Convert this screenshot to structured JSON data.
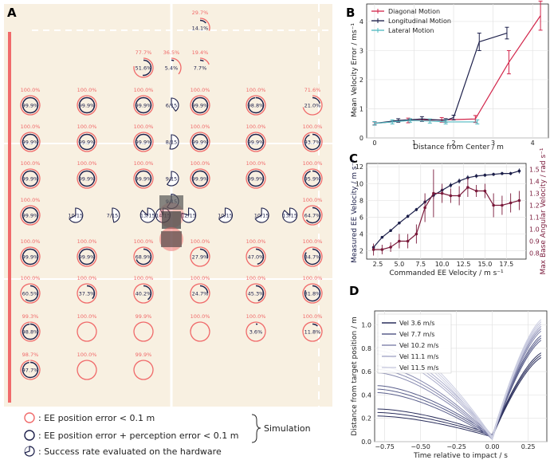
{
  "figure": {
    "panel_labels": [
      "A",
      "B",
      "C",
      "D"
    ],
    "colors": {
      "bg": "#f8f0e1",
      "pink": "#f06a6a",
      "navy": "#1c1f4a",
      "darkred": "#7a1a3b",
      "teal": "#4fb8c0",
      "crimson": "#d2264b"
    }
  },
  "panelA": {
    "legend": {
      "pink_circle": ": EE position error < 0.1 m",
      "navy_circle": ": EE position error + perception error < 0.1 m",
      "hardware_glyph": ": Success rate evaluated on the hardware",
      "group_label": "Simulation"
    },
    "grid": [
      {
        "col": 4,
        "row": 0,
        "outer": "29.7%",
        "inner": "14.1%",
        "outerfrac": 0.297,
        "innerfrac": 0.141
      },
      {
        "col": 2,
        "row": 1,
        "outer": "77.7%",
        "inner": "51.6%",
        "outerfrac": 0.777,
        "innerfrac": 0.516
      },
      {
        "col": 3,
        "row": 1,
        "outer": "36.5%",
        "inner": "5.4%",
        "outerfrac": 0.365,
        "innerfrac": 0.054
      },
      {
        "col": 4,
        "row": 1,
        "outer": "19.4%",
        "inner": "7.7%",
        "outerfrac": 0.194,
        "innerfrac": 0.077
      },
      {
        "col": 0,
        "row": 2,
        "outer": "100.0%",
        "inner": "99.9%",
        "outerfrac": 1.0,
        "innerfrac": 0.999
      },
      {
        "col": 1,
        "row": 2,
        "outer": "100.0%",
        "inner": "99.9%",
        "outerfrac": 1.0,
        "innerfrac": 0.999
      },
      {
        "col": 2,
        "row": 2,
        "outer": "100.0%",
        "inner": "99.9%",
        "outerfrac": 1.0,
        "innerfrac": 0.999
      },
      {
        "col": 4,
        "row": 2,
        "outer": "100.0%",
        "inner": "99.9%",
        "outerfrac": 1.0,
        "innerfrac": 0.999
      },
      {
        "col": 5,
        "row": 2,
        "outer": "100.0%",
        "inner": "98.8%",
        "outerfrac": 1.0,
        "innerfrac": 0.988
      },
      {
        "col": 6,
        "row": 2,
        "outer": "71.6%",
        "inner": "21.0%",
        "outerfrac": 0.716,
        "innerfrac": 0.21
      },
      {
        "col": 0,
        "row": 3,
        "outer": "100.0%",
        "inner": "99.9%",
        "outerfrac": 1.0,
        "innerfrac": 0.999
      },
      {
        "col": 1,
        "row": 3,
        "outer": "100.0%",
        "inner": "99.9%",
        "outerfrac": 1.0,
        "innerfrac": 0.999
      },
      {
        "col": 2,
        "row": 3,
        "outer": "100.0%",
        "inner": "99.9%",
        "outerfrac": 1.0,
        "innerfrac": 0.999
      },
      {
        "col": 4,
        "row": 3,
        "outer": "100.0%",
        "inner": "99.9%",
        "outerfrac": 1.0,
        "innerfrac": 0.999
      },
      {
        "col": 5,
        "row": 3,
        "outer": "100.0%",
        "inner": "99.9%",
        "outerfrac": 1.0,
        "innerfrac": 0.999
      },
      {
        "col": 6,
        "row": 3,
        "outer": "100.0%",
        "inner": "93.7%",
        "outerfrac": 1.0,
        "innerfrac": 0.937
      },
      {
        "col": 0,
        "row": 4,
        "outer": "100.0%",
        "inner": "99.9%",
        "outerfrac": 1.0,
        "innerfrac": 0.999
      },
      {
        "col": 1,
        "row": 4,
        "outer": "100.0%",
        "inner": "99.9%",
        "outerfrac": 1.0,
        "innerfrac": 0.999
      },
      {
        "col": 2,
        "row": 4,
        "outer": "100.0%",
        "inner": "99.9%",
        "outerfrac": 1.0,
        "innerfrac": 0.999
      },
      {
        "col": 4,
        "row": 4,
        "outer": "100.0%",
        "inner": "99.9%",
        "outerfrac": 1.0,
        "innerfrac": 0.999
      },
      {
        "col": 5,
        "row": 4,
        "outer": "100.0%",
        "inner": "99.9%",
        "outerfrac": 1.0,
        "innerfrac": 0.999
      },
      {
        "col": 6,
        "row": 4,
        "outer": "100.0%",
        "inner": "95.9%",
        "outerfrac": 1.0,
        "innerfrac": 0.959
      },
      {
        "col": 0,
        "row": 5,
        "outer": "100.0%",
        "inner": "99.9%",
        "outerfrac": 1.0,
        "innerfrac": 0.999
      },
      {
        "col": 6,
        "row": 5,
        "outer": "100.0%",
        "inner": "64.7%",
        "outerfrac": 1.0,
        "innerfrac": 0.647
      },
      {
        "col": 0,
        "row": 6,
        "outer": "100.0%",
        "inner": "99.9%",
        "outerfrac": 1.0,
        "innerfrac": 0.999
      },
      {
        "col": 1,
        "row": 6,
        "outer": "100.0%",
        "inner": "99.9%",
        "outerfrac": 1.0,
        "innerfrac": 0.999
      },
      {
        "col": 2,
        "row": 6,
        "outer": "100.0%",
        "inner": "68.9%",
        "outerfrac": 1.0,
        "innerfrac": 0.689
      },
      {
        "col": 4,
        "row": 6,
        "outer": "100.0%",
        "inner": "27.9%",
        "outerfrac": 1.0,
        "innerfrac": 0.279
      },
      {
        "col": 5,
        "row": 6,
        "outer": "100.0%",
        "inner": "47.0%",
        "outerfrac": 1.0,
        "innerfrac": 0.47
      },
      {
        "col": 6,
        "row": 6,
        "outer": "100.0%",
        "inner": "84.7%",
        "outerfrac": 1.0,
        "innerfrac": 0.847
      },
      {
        "col": 0,
        "row": 7,
        "outer": "100.0%",
        "inner": "60.5%",
        "outerfrac": 1.0,
        "innerfrac": 0.605
      },
      {
        "col": 1,
        "row": 7,
        "outer": "100.0%",
        "inner": "37.3%",
        "outerfrac": 1.0,
        "innerfrac": 0.373
      },
      {
        "col": 2,
        "row": 7,
        "outer": "100.0%",
        "inner": "40.2%",
        "outerfrac": 1.0,
        "innerfrac": 0.402
      },
      {
        "col": 4,
        "row": 7,
        "outer": "100.0%",
        "inner": "24.7%",
        "outerfrac": 1.0,
        "innerfrac": 0.247
      },
      {
        "col": 5,
        "row": 7,
        "outer": "100.0%",
        "inner": "45.3%",
        "outerfrac": 1.0,
        "innerfrac": 0.453
      },
      {
        "col": 6,
        "row": 7,
        "outer": "100.0%",
        "inner": "81.8%",
        "outerfrac": 1.0,
        "innerfrac": 0.818
      },
      {
        "col": 0,
        "row": 8,
        "outer": "99.3%",
        "inner": "98.8%",
        "outerfrac": 0.993,
        "innerfrac": 0.988
      },
      {
        "col": 1,
        "row": 8,
        "outer": "100.0%",
        "inner": "",
        "outerfrac": 1.0,
        "innerfrac": 0
      },
      {
        "col": 2,
        "row": 8,
        "outer": "99.9%",
        "inner": "",
        "outerfrac": 0.999,
        "innerfrac": 0
      },
      {
        "col": 4,
        "row": 8,
        "outer": "100.0%",
        "inner": "",
        "outerfrac": 1.0,
        "innerfrac": 0
      },
      {
        "col": 5,
        "row": 8,
        "outer": "100.0%",
        "inner": "3.6%",
        "outerfrac": 1.0,
        "innerfrac": 0.036
      },
      {
        "col": 6,
        "row": 8,
        "outer": "100.0%",
        "inner": "11.8%",
        "outerfrac": 1.0,
        "innerfrac": 0.118
      },
      {
        "col": 0,
        "row": 9,
        "outer": "98.7%",
        "inner": "97.7%",
        "outerfrac": 0.987,
        "innerfrac": 0.977
      },
      {
        "col": 1,
        "row": 9,
        "outer": "100.0%",
        "inner": "",
        "outerfrac": 1.0,
        "innerfrac": 0
      },
      {
        "col": 2,
        "row": 9,
        "outer": "99.9%",
        "inner": "",
        "outerfrac": 0.999,
        "innerfrac": 0
      }
    ],
    "hardware": [
      {
        "col": 3,
        "row": 2,
        "label": "6/15",
        "frac": 0.4
      },
      {
        "col": 3,
        "row": 3,
        "label": "8/15",
        "frac": 0.533
      },
      {
        "col": 3,
        "row": 4,
        "label": "9/15",
        "frac": 0.6
      },
      {
        "col": 3,
        "row": 4.62,
        "label": "9/15",
        "frac": 0.6
      },
      {
        "col": 0.8,
        "row": 5,
        "label": "10/15",
        "frac": 0.667
      },
      {
        "col": 1.45,
        "row": 5,
        "label": "7/15",
        "frac": 0.467
      },
      {
        "col": 2.15,
        "row": 5,
        "label": "13/15",
        "frac": 0.867
      },
      {
        "col": 2.7,
        "row": 5,
        "label": "14/15",
        "frac": 0.933
      },
      {
        "col": 3.6,
        "row": 5,
        "label": "12/15",
        "frac": 0.8
      },
      {
        "col": 4.45,
        "row": 5,
        "label": "10/15",
        "frac": 0.667
      },
      {
        "col": 5.1,
        "row": 5,
        "label": "10/15",
        "frac": 0.667
      },
      {
        "col": 5.6,
        "row": 5,
        "label": "13/15",
        "frac": 0.867
      }
    ]
  },
  "chart_data": [
    {
      "panel": "B",
      "type": "line",
      "xlabel": "Distance from Center / m",
      "ylabel": "Mean Velocity Error / ms⁻¹",
      "xlim": [
        -0.2,
        4.4
      ],
      "ylim": [
        0,
        4.6
      ],
      "xticks": [
        0,
        1,
        2,
        3,
        4
      ],
      "yticks": [
        0,
        1,
        2,
        3,
        4
      ],
      "grid": true,
      "legend": "top-left",
      "series": [
        {
          "name": "Diagonal Motion",
          "color": "#d2264b",
          "x": [
            0,
            0.85,
            1.7,
            2.55,
            3.4,
            4.2
          ],
          "y": [
            0.5,
            0.6,
            0.62,
            0.65,
            2.6,
            4.2
          ],
          "err": [
            0.05,
            0.08,
            0.08,
            0.12,
            0.4,
            0.5
          ]
        },
        {
          "name": "Longitudinal Motion",
          "color": "#1c1f4a",
          "x": [
            0,
            0.6,
            1.2,
            1.8,
            2.0,
            2.65,
            3.35
          ],
          "y": [
            0.5,
            0.6,
            0.65,
            0.6,
            0.7,
            3.3,
            3.6
          ],
          "err": [
            0.06,
            0.06,
            0.08,
            0.06,
            0.08,
            0.3,
            0.2
          ]
        },
        {
          "name": "Lateral Motion",
          "color": "#4fb8c0",
          "x": [
            0,
            0.45,
            0.9,
            1.4,
            1.8,
            2.6
          ],
          "y": [
            0.5,
            0.55,
            0.6,
            0.58,
            0.55,
            0.55
          ],
          "err": [
            0.06,
            0.07,
            0.06,
            0.07,
            0.07,
            0.07
          ]
        }
      ]
    },
    {
      "panel": "C",
      "type": "line",
      "xlabel": "Commanded EE Velocity / m s⁻¹",
      "ylabel": "Measured EE Velocity / m s⁻¹",
      "ylabel_right": "Max Base Angular Velocity / rad s⁻¹",
      "xlim": [
        1.2,
        19.8
      ],
      "ylim": [
        1,
        12.4
      ],
      "ylim_right": [
        0.75,
        1.55
      ],
      "xticks": [
        2.5,
        5.0,
        7.5,
        10.0,
        12.5,
        15.0,
        17.5
      ],
      "yticks": [
        2,
        4,
        6,
        8,
        10,
        12
      ],
      "yticks_right": [
        0.8,
        0.9,
        1.0,
        1.1,
        1.2,
        1.3,
        1.4,
        1.5
      ],
      "grid": true,
      "series": [
        {
          "name": "Measured EE Velocity",
          "color": "#1c1f4a",
          "axis": "left",
          "x": [
            2,
            3,
            4,
            5,
            6,
            7,
            8,
            9,
            10,
            11,
            12,
            13,
            14,
            15,
            16,
            17,
            18,
            19
          ],
          "y": [
            2.4,
            3.6,
            4.4,
            5.3,
            6.1,
            6.9,
            7.8,
            8.6,
            9.2,
            9.8,
            10.3,
            10.7,
            10.9,
            11.0,
            11.1,
            11.2,
            11.2,
            11.5
          ],
          "err": [
            0.1,
            0.1,
            0.15,
            0.15,
            0.2,
            0.2,
            0.3,
            0.4,
            0.3,
            0.3,
            0.3,
            0.3,
            0.25,
            0.2,
            0.2,
            0.2,
            0.2,
            0.3
          ]
        },
        {
          "name": "Max Base Angular Velocity",
          "color": "#7a1a3b",
          "axis": "right",
          "x": [
            2,
            3,
            4,
            5,
            6,
            7,
            8,
            9,
            10,
            11,
            12,
            13,
            14,
            15,
            16,
            17,
            18,
            19
          ],
          "y": [
            0.83,
            0.83,
            0.85,
            0.9,
            0.9,
            0.96,
            1.18,
            1.3,
            1.3,
            1.28,
            1.28,
            1.35,
            1.32,
            1.32,
            1.2,
            1.2,
            1.22,
            1.24
          ],
          "err": [
            0.05,
            0.04,
            0.04,
            0.06,
            0.06,
            0.08,
            0.12,
            0.2,
            0.08,
            0.06,
            0.08,
            0.08,
            0.05,
            0.06,
            0.1,
            0.08,
            0.08,
            0.08
          ]
        }
      ]
    },
    {
      "panel": "D",
      "type": "line",
      "xlabel": "Time relative to impact / s",
      "ylabel": "Distance from target position / m",
      "xlim": [
        -0.82,
        0.38
      ],
      "ylim": [
        0,
        1.12
      ],
      "xticks": [
        -0.75,
        -0.5,
        -0.25,
        0.0,
        0.25
      ],
      "xtick_labels": [
        "−0.75",
        "−0.50",
        "−0.25",
        "0.00",
        "0.25"
      ],
      "yticks": [
        0.0,
        0.2,
        0.4,
        0.6,
        0.8,
        1.0
      ],
      "grid": true,
      "legend": "top-left",
      "legend_entries": [
        "Vel 3.6 m/s",
        "Vel 7.7 m/s",
        "Vel 10.2 m/s",
        "Vel 11.1 m/s",
        "Vel 11.5 m/s"
      ],
      "series": [
        {
          "name": "Vel 3.6 m/s",
          "color": "#2a2e5c",
          "start": 0.25,
          "min": 0.04,
          "end": 0.75
        },
        {
          "name": "Vel 7.7 m/s",
          "color": "#5a5f8c",
          "start": 0.45,
          "min": 0.03,
          "end": 0.9
        },
        {
          "name": "Vel 10.2 m/s",
          "color": "#878ab0",
          "start": 0.62,
          "min": 0.02,
          "end": 0.98
        },
        {
          "name": "Vel 11.1 m/s",
          "color": "#acaecc",
          "start": 0.78,
          "min": 0.03,
          "end": 1.02
        },
        {
          "name": "Vel 11.5 m/s",
          "color": "#cdcfe2",
          "start": 0.9,
          "min": 0.02,
          "end": 1.04
        }
      ]
    }
  ]
}
